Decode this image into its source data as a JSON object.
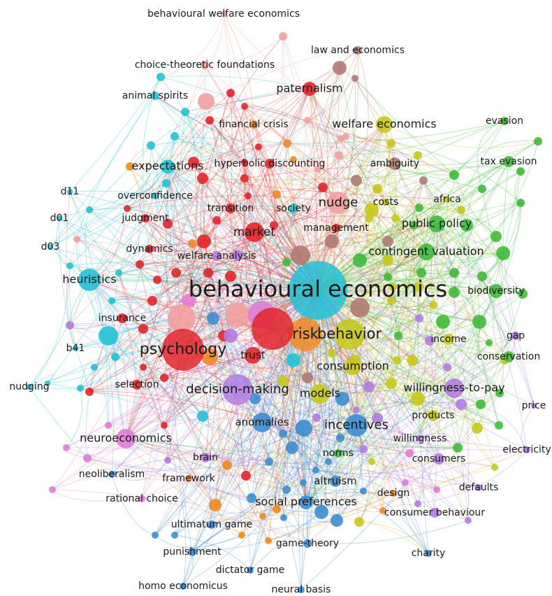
{
  "colors": {
    "red": "#e2262b",
    "pink": "#f2a0a0",
    "cyan": "#24c1d6",
    "orange": "#f08a24",
    "brown": "#b07a72",
    "olive": "#c6c81a",
    "green": "#3fba3a",
    "purple": "#b27ce0",
    "blue": "#3d8ed1",
    "magenta": "#e07cd6"
  },
  "terms": [
    {
      "label": "behavioural economics",
      "cluster": "cyan"
    },
    {
      "label": "risk",
      "cluster": "orange"
    },
    {
      "label": "behavior",
      "cluster": "olive"
    },
    {
      "label": "psychology",
      "cluster": "red"
    },
    {
      "label": "trust",
      "cluster": "red"
    },
    {
      "label": "decision-making",
      "cluster": "purple"
    },
    {
      "label": "consumption",
      "cluster": "olive"
    },
    {
      "label": "models",
      "cluster": "olive"
    },
    {
      "label": "incentives",
      "cluster": "blue"
    },
    {
      "label": "nudge",
      "cluster": "pink"
    },
    {
      "label": "market",
      "cluster": "red"
    },
    {
      "label": "heuristics",
      "cluster": "cyan"
    },
    {
      "label": "welfare economics",
      "cluster": "olive"
    },
    {
      "label": "paternalism",
      "cluster": "red"
    },
    {
      "label": "expectations",
      "cluster": "cyan"
    },
    {
      "label": "public policy",
      "cluster": "green"
    },
    {
      "label": "contingent valuation",
      "cluster": "green"
    },
    {
      "label": "willingness-to-pay",
      "cluster": "purple"
    },
    {
      "label": "neuroeconomics",
      "cluster": "magenta"
    },
    {
      "label": "social preferences",
      "cluster": "blue"
    },
    {
      "label": "anomalies",
      "cluster": "blue"
    },
    {
      "label": "altruism",
      "cluster": "blue"
    },
    {
      "label": "tax evasion",
      "cluster": "green"
    },
    {
      "label": "biodiversity",
      "cluster": "green"
    },
    {
      "label": "conservation",
      "cluster": "green"
    },
    {
      "label": "income",
      "cluster": "olive"
    },
    {
      "label": "products",
      "cluster": "olive"
    },
    {
      "label": "consumers",
      "cluster": "purple"
    },
    {
      "label": "behavioural welfare economics",
      "cluster": "pink"
    },
    {
      "label": "law and economics",
      "cluster": "brown"
    },
    {
      "label": "choice-theoretic foundations",
      "cluster": "pink"
    },
    {
      "label": "animal spirits",
      "cluster": "cyan"
    },
    {
      "label": "financial crisis",
      "cluster": "orange"
    },
    {
      "label": "hyperbolic discounting",
      "cluster": "red"
    },
    {
      "label": "ambiguity",
      "cluster": "brown"
    },
    {
      "label": "evasion",
      "cluster": "green"
    },
    {
      "label": "overconfidence",
      "cluster": "cyan"
    },
    {
      "label": "africa",
      "cluster": "olive"
    },
    {
      "label": "costs",
      "cluster": "olive"
    },
    {
      "label": "transition",
      "cluster": "red"
    },
    {
      "label": "society",
      "cluster": "cyan"
    },
    {
      "label": "management",
      "cluster": "red"
    },
    {
      "label": "judgment",
      "cluster": "red"
    },
    {
      "label": "d11",
      "cluster": "cyan"
    },
    {
      "label": "d01",
      "cluster": "cyan"
    },
    {
      "label": "d03",
      "cluster": "cyan"
    },
    {
      "label": "dynamics",
      "cluster": "red"
    },
    {
      "label": "welfare analysis",
      "cluster": "purple"
    },
    {
      "label": "insurance",
      "cluster": "red"
    },
    {
      "label": "b41",
      "cluster": "cyan"
    },
    {
      "label": "gap",
      "cluster": "purple"
    },
    {
      "label": "nudging",
      "cluster": "cyan"
    },
    {
      "label": "selection",
      "cluster": "red"
    },
    {
      "label": "price",
      "cluster": "purple"
    },
    {
      "label": "willingness",
      "cluster": "purple"
    },
    {
      "label": "electricity",
      "cluster": "purple"
    },
    {
      "label": "norms",
      "cluster": "green"
    },
    {
      "label": "brain",
      "cluster": "purple"
    },
    {
      "label": "neoliberalism",
      "cluster": "blue"
    },
    {
      "label": "framework",
      "cluster": "orange"
    },
    {
      "label": "defaults",
      "cluster": "purple"
    },
    {
      "label": "design",
      "cluster": "orange"
    },
    {
      "label": "rational choice",
      "cluster": "magenta"
    },
    {
      "label": "consumer behaviour",
      "cluster": "purple"
    },
    {
      "label": "ultimatum game",
      "cluster": "blue"
    },
    {
      "label": "game-theory",
      "cluster": "blue"
    },
    {
      "label": "punishment",
      "cluster": "blue"
    },
    {
      "label": "charity",
      "cluster": "blue"
    },
    {
      "label": "dictator game",
      "cluster": "blue"
    },
    {
      "label": "homo economicus",
      "cluster": "blue"
    },
    {
      "label": "neural basis",
      "cluster": "blue"
    }
  ]
}
